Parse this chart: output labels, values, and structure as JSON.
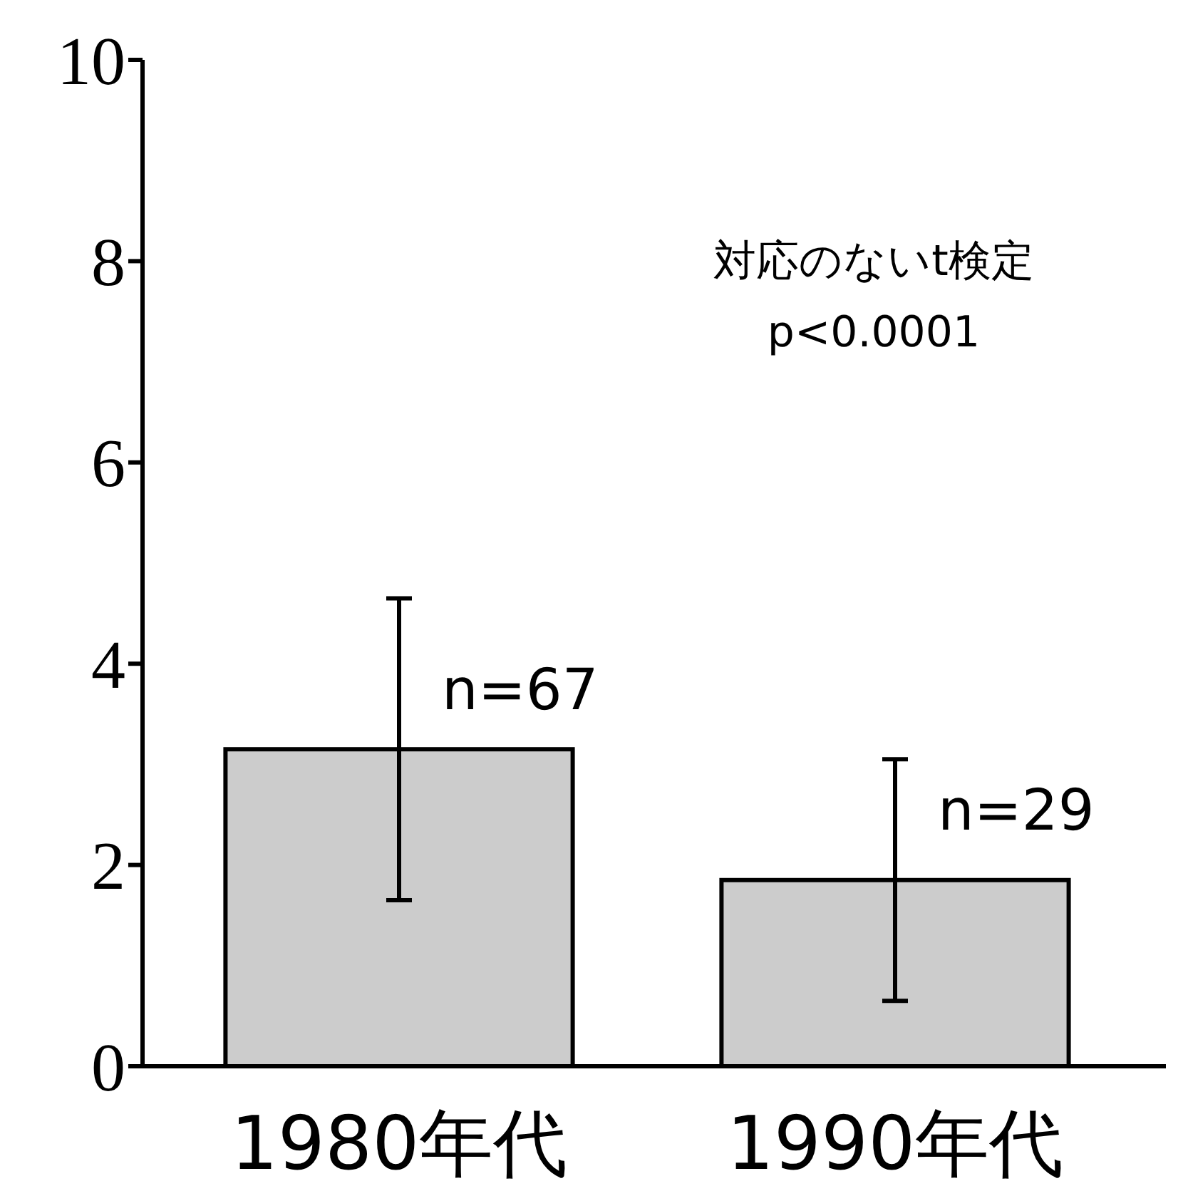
{
  "chart_data": {
    "type": "bar",
    "categories": [
      "1980年代",
      "1990年代"
    ],
    "values": [
      3.15,
      1.85
    ],
    "errors": [
      1.5,
      1.2
    ],
    "color": "#cccccc",
    "ylim": [
      0,
      10
    ],
    "yticks": [
      0,
      2,
      4,
      6,
      8,
      10
    ],
    "grid": false,
    "annotations": [
      {
        "text": "n=67",
        "x": "1980年代",
        "y": 3.75
      },
      {
        "text": "n=29",
        "x": "1990年代",
        "y": 2.55
      },
      "対応のないt検定",
      "p<0.0001"
    ]
  }
}
